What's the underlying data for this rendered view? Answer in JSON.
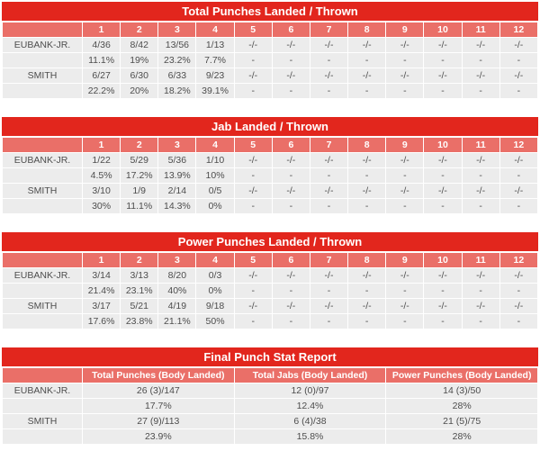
{
  "colors": {
    "title_bg": "#e2261d",
    "subheader_bg": "#ea6f68",
    "cell_bg": "#ececec",
    "header_text": "#ffffff",
    "cell_text": "#4d4d4d",
    "page_bg": "#ffffff"
  },
  "fighters": [
    "EUBANK-JR.",
    "SMITH"
  ],
  "chart_data": [
    {
      "type": "table",
      "title": "Total Punches Landed / Thrown",
      "columns": [
        "1",
        "2",
        "3",
        "4",
        "5",
        "6",
        "7",
        "8",
        "9",
        "10",
        "11",
        "12"
      ],
      "rows": [
        {
          "name": "EUBANK-JR.",
          "values": [
            "4/36",
            "8/42",
            "13/56",
            "1/13",
            "-/-",
            "-/-",
            "-/-",
            "-/-",
            "-/-",
            "-/-",
            "-/-",
            "-/-"
          ]
        },
        {
          "name": "",
          "values": [
            "11.1%",
            "19%",
            "23.2%",
            "7.7%",
            "-",
            "-",
            "-",
            "-",
            "-",
            "-",
            "-",
            "-"
          ]
        },
        {
          "name": "SMITH",
          "values": [
            "6/27",
            "6/30",
            "6/33",
            "9/23",
            "-/-",
            "-/-",
            "-/-",
            "-/-",
            "-/-",
            "-/-",
            "-/-",
            "-/-"
          ]
        },
        {
          "name": "",
          "values": [
            "22.2%",
            "20%",
            "18.2%",
            "39.1%",
            "-",
            "-",
            "-",
            "-",
            "-",
            "-",
            "-",
            "-"
          ]
        }
      ]
    },
    {
      "type": "table",
      "title": "Jab Landed / Thrown",
      "columns": [
        "1",
        "2",
        "3",
        "4",
        "5",
        "6",
        "7",
        "8",
        "9",
        "10",
        "11",
        "12"
      ],
      "rows": [
        {
          "name": "EUBANK-JR.",
          "values": [
            "1/22",
            "5/29",
            "5/36",
            "1/10",
            "-/-",
            "-/-",
            "-/-",
            "-/-",
            "-/-",
            "-/-",
            "-/-",
            "-/-"
          ]
        },
        {
          "name": "",
          "values": [
            "4.5%",
            "17.2%",
            "13.9%",
            "10%",
            "-",
            "-",
            "-",
            "-",
            "-",
            "-",
            "-",
            "-"
          ]
        },
        {
          "name": "SMITH",
          "values": [
            "3/10",
            "1/9",
            "2/14",
            "0/5",
            "-/-",
            "-/-",
            "-/-",
            "-/-",
            "-/-",
            "-/-",
            "-/-",
            "-/-"
          ]
        },
        {
          "name": "",
          "values": [
            "30%",
            "11.1%",
            "14.3%",
            "0%",
            "-",
            "-",
            "-",
            "-",
            "-",
            "-",
            "-",
            "-"
          ]
        }
      ]
    },
    {
      "type": "table",
      "title": "Power Punches Landed / Thrown",
      "columns": [
        "1",
        "2",
        "3",
        "4",
        "5",
        "6",
        "7",
        "8",
        "9",
        "10",
        "11",
        "12"
      ],
      "rows": [
        {
          "name": "EUBANK-JR.",
          "values": [
            "3/14",
            "3/13",
            "8/20",
            "0/3",
            "-/-",
            "-/-",
            "-/-",
            "-/-",
            "-/-",
            "-/-",
            "-/-",
            "-/-"
          ]
        },
        {
          "name": "",
          "values": [
            "21.4%",
            "23.1%",
            "40%",
            "0%",
            "-",
            "-",
            "-",
            "-",
            "-",
            "-",
            "-",
            "-"
          ]
        },
        {
          "name": "SMITH",
          "values": [
            "3/17",
            "5/21",
            "4/19",
            "9/18",
            "-/-",
            "-/-",
            "-/-",
            "-/-",
            "-/-",
            "-/-",
            "-/-",
            "-/-"
          ]
        },
        {
          "name": "",
          "values": [
            "17.6%",
            "23.8%",
            "21.1%",
            "50%",
            "-",
            "-",
            "-",
            "-",
            "-",
            "-",
            "-",
            "-"
          ]
        }
      ]
    },
    {
      "type": "table",
      "title": "Final Punch Stat Report",
      "columns": [
        "Total Punches (Body Landed)",
        "Total Jabs (Body Landed)",
        "Power Punches (Body Landed)"
      ],
      "rows": [
        {
          "name": "EUBANK-JR.",
          "values": [
            "26 (3)/147",
            "12 (0)/97",
            "14 (3)/50"
          ]
        },
        {
          "name": "",
          "values": [
            "17.7%",
            "12.4%",
            "28%"
          ]
        },
        {
          "name": "SMITH",
          "values": [
            "27 (9)/113",
            "6 (4)/38",
            "21 (5)/75"
          ]
        },
        {
          "name": "",
          "values": [
            "23.9%",
            "15.8%",
            "28%"
          ]
        }
      ]
    }
  ]
}
